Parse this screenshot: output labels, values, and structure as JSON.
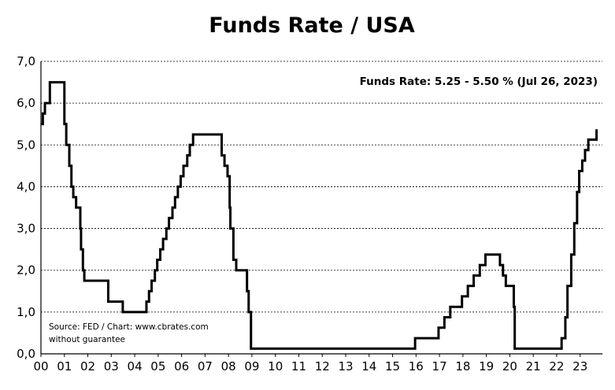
{
  "chart_data": {
    "type": "line",
    "title": "Funds Rate / USA",
    "xlabel": "",
    "ylabel": "",
    "xlim": [
      2000.0,
      2023.95
    ],
    "ylim": [
      0,
      7
    ],
    "grid": true,
    "y_ticks": [
      "0,0",
      "1,0",
      "2,0",
      "3,0",
      "4,0",
      "5,0",
      "6,0",
      "7,0"
    ],
    "x_ticks": [
      "00",
      "01",
      "02",
      "03",
      "04",
      "05",
      "06",
      "07",
      "08",
      "09",
      "10",
      "11",
      "12",
      "13",
      "14",
      "15",
      "16",
      "17",
      "18",
      "19",
      "20",
      "21",
      "22",
      "23"
    ],
    "annotation": "Funds Rate: 5.25 - 5.50 % (Jul 26, 2023)",
    "source_lines": [
      "Source: FED /  Chart: www.cbrates.com",
      "without guarantee"
    ],
    "line_color": "#000000",
    "series": [
      {
        "x": [
          2000.0,
          2000.08,
          2000.17,
          2000.38,
          2001.0,
          2001.08,
          2001.21,
          2001.3,
          2001.38,
          2001.5,
          2001.68,
          2001.71,
          2001.79,
          2001.85,
          2001.94,
          2002.87,
          2003.49,
          2004.5,
          2004.61,
          2004.72,
          2004.86,
          2004.96,
          2005.09,
          2005.21,
          2005.35,
          2005.46,
          2005.61,
          2005.72,
          2005.84,
          2005.96,
          2006.08,
          2006.24,
          2006.35,
          2006.49,
          2007.71,
          2007.83,
          2007.96,
          2008.05,
          2008.08,
          2008.21,
          2008.33,
          2008.79,
          2008.86,
          2008.96,
          2015.96,
          2016.96,
          2017.21,
          2017.46,
          2017.96,
          2018.21,
          2018.46,
          2018.72,
          2018.96,
          2019.58,
          2019.71,
          2019.83,
          2020.17,
          2020.21,
          2022.21,
          2022.37,
          2022.46,
          2022.62,
          2022.75,
          2022.87,
          2022.96,
          2023.09,
          2023.21,
          2023.35,
          2023.56,
          2023.7
        ],
        "values": [
          5.5,
          5.75,
          6.0,
          6.5,
          5.5,
          5.0,
          4.5,
          4.0,
          3.75,
          3.5,
          3.0,
          2.5,
          2.0,
          1.75,
          1.75,
          1.25,
          1.0,
          1.25,
          1.5,
          1.75,
          2.0,
          2.25,
          2.5,
          2.75,
          3.0,
          3.25,
          3.5,
          3.75,
          4.0,
          4.25,
          4.5,
          4.75,
          5.0,
          5.25,
          4.75,
          4.5,
          4.25,
          3.5,
          3.0,
          2.25,
          2.0,
          1.5,
          1.0,
          0.125,
          0.375,
          0.625,
          0.875,
          1.125,
          1.375,
          1.625,
          1.875,
          2.125,
          2.375,
          2.125,
          1.875,
          1.625,
          1.125,
          0.125,
          0.375,
          0.875,
          1.625,
          2.375,
          3.125,
          3.875,
          4.375,
          4.625,
          4.875,
          5.125,
          5.125,
          5.375
        ]
      }
    ]
  }
}
